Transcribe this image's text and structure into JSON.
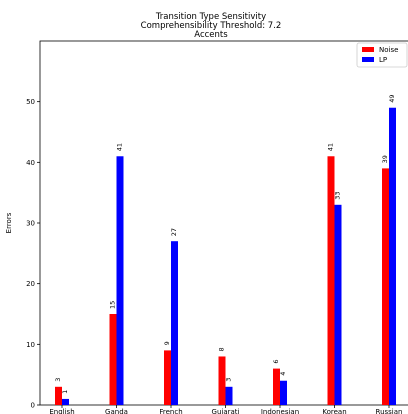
{
  "chart_data": {
    "type": "bar",
    "title_lines": [
      "Transition Type Sensitivity",
      "Comprehensibility Threshold: 7.2",
      "Accents"
    ],
    "xlabel": "",
    "ylabel": "Errors",
    "categories": [
      "English",
      "Ganda",
      "French",
      "Gujarati",
      "Indonesian",
      "Korean",
      "Russian"
    ],
    "series": [
      {
        "name": "Noise",
        "color": "#ff0000",
        "values": [
          3,
          15,
          9,
          8,
          6,
          41,
          39
        ]
      },
      {
        "name": "LP",
        "color": "#0000ff",
        "values": [
          1,
          41,
          27,
          3,
          4,
          33,
          49
        ]
      }
    ],
    "ylim": [
      0,
      60
    ],
    "yticks": [
      0,
      10,
      20,
      30,
      40,
      50
    ],
    "legend_position": "top-right",
    "grid": false
  }
}
